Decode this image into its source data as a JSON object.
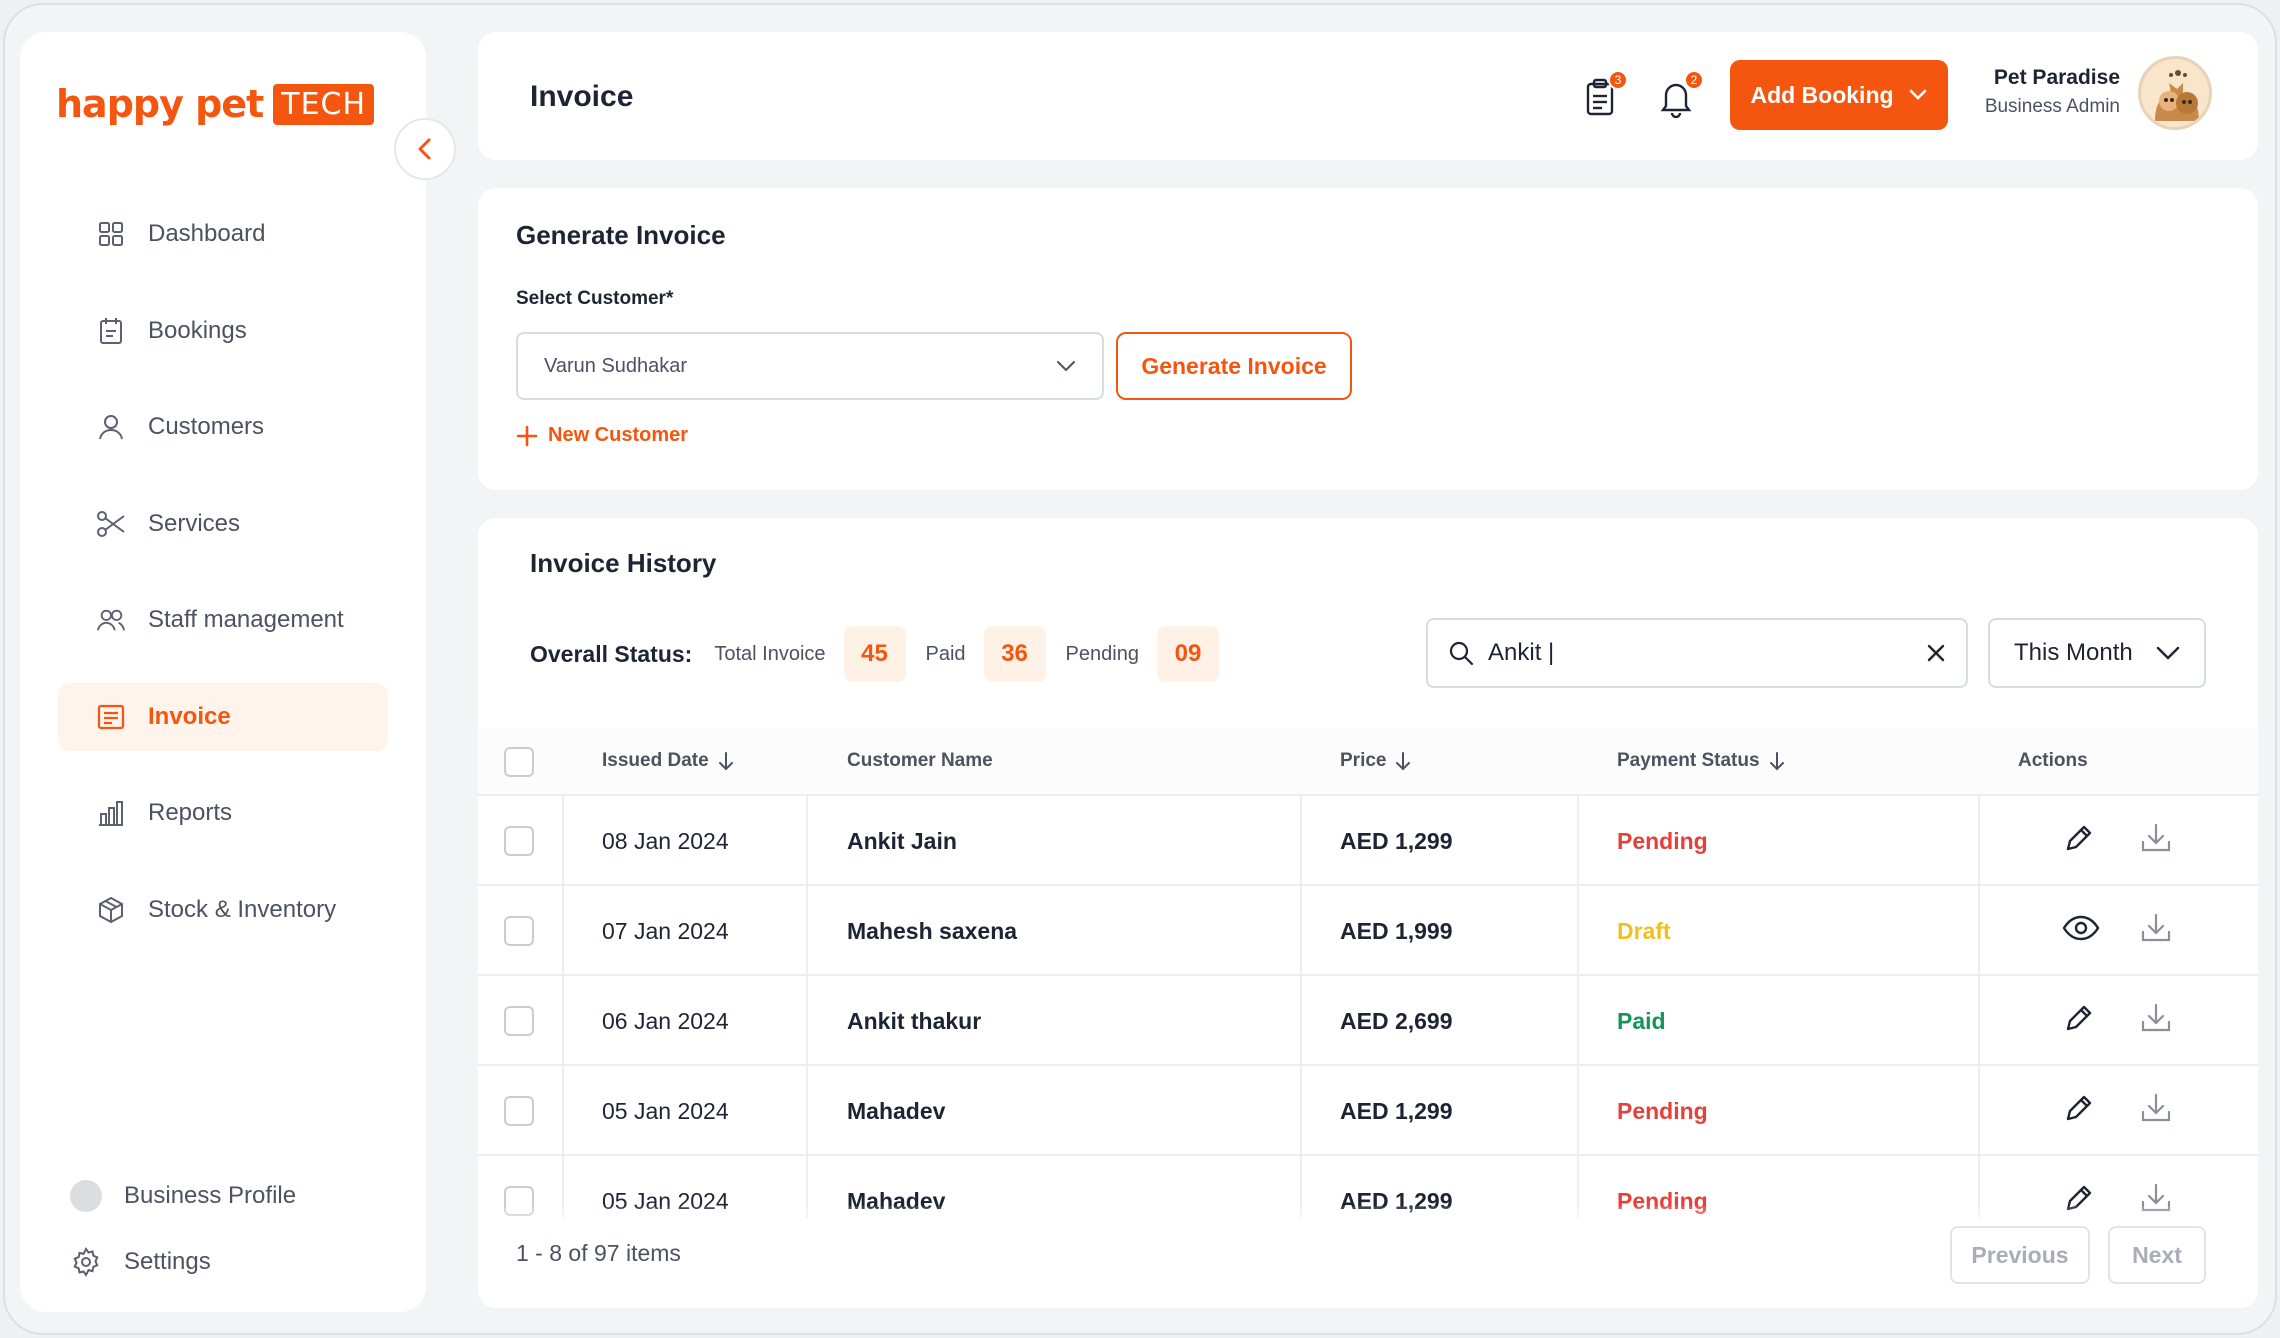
{
  "brand": {
    "word": "happy pet",
    "tech": "TECH",
    "color": "#f4560f"
  },
  "sidebar": {
    "items": [
      {
        "label": "Dashboard",
        "icon": "dashboard-icon"
      },
      {
        "label": "Bookings",
        "icon": "bookings-icon"
      },
      {
        "label": "Customers",
        "icon": "user-icon"
      },
      {
        "label": "Services",
        "icon": "scissors-icon"
      },
      {
        "label": "Staff management",
        "icon": "users-icon"
      },
      {
        "label": "Invoice",
        "icon": "invoice-icon",
        "active": true
      },
      {
        "label": "Reports",
        "icon": "chart-icon"
      },
      {
        "label": "Stock & Inventory",
        "icon": "box-icon"
      }
    ],
    "bottom": {
      "profile": "Business Profile",
      "settings": "Settings"
    }
  },
  "header": {
    "title": "Invoice",
    "task_badge": "3",
    "notif_badge": "2",
    "add_booking": "Add Booking",
    "user_name": "Pet Paradise",
    "user_role": "Business Admin"
  },
  "generate": {
    "title": "Generate Invoice",
    "select_label": "Select Customer*",
    "selected_customer": "Varun Sudhakar",
    "button": "Generate Invoice",
    "new_customer": "New Customer"
  },
  "history": {
    "title": "Invoice History",
    "overall_label": "Overall Status:",
    "total_label": "Total Invoice",
    "total_count": "45",
    "paid_label": "Paid",
    "paid_count": "36",
    "pending_label": "Pending",
    "pending_count": "09",
    "search_value": "Ankit |",
    "period": "This Month",
    "columns": {
      "issued": "Issued Date",
      "customer": "Customer Name",
      "price": "Price",
      "status": "Payment Status",
      "actions": "Actions"
    },
    "rows": [
      {
        "date": "08 Jan 2024",
        "name": "Ankit Jain",
        "price": "AED 1,299",
        "status": "Pending",
        "action": "edit"
      },
      {
        "date": "07 Jan 2024",
        "name": "Mahesh saxena",
        "price": "AED 1,999",
        "status": "Draft",
        "action": "view"
      },
      {
        "date": "06 Jan 2024",
        "name": "Ankit thakur",
        "price": "AED 2,699",
        "status": "Paid",
        "action": "edit"
      },
      {
        "date": "05 Jan 2024",
        "name": "Mahadev",
        "price": "AED 1,299",
        "status": "Pending",
        "action": "edit"
      },
      {
        "date": "05 Jan 2024",
        "name": "Mahadev",
        "price": "AED 1,299",
        "status": "Pending",
        "action": "edit"
      }
    ],
    "items_summary": "1 - 8 of 97 items",
    "prev": "Previous",
    "next": "Next"
  }
}
